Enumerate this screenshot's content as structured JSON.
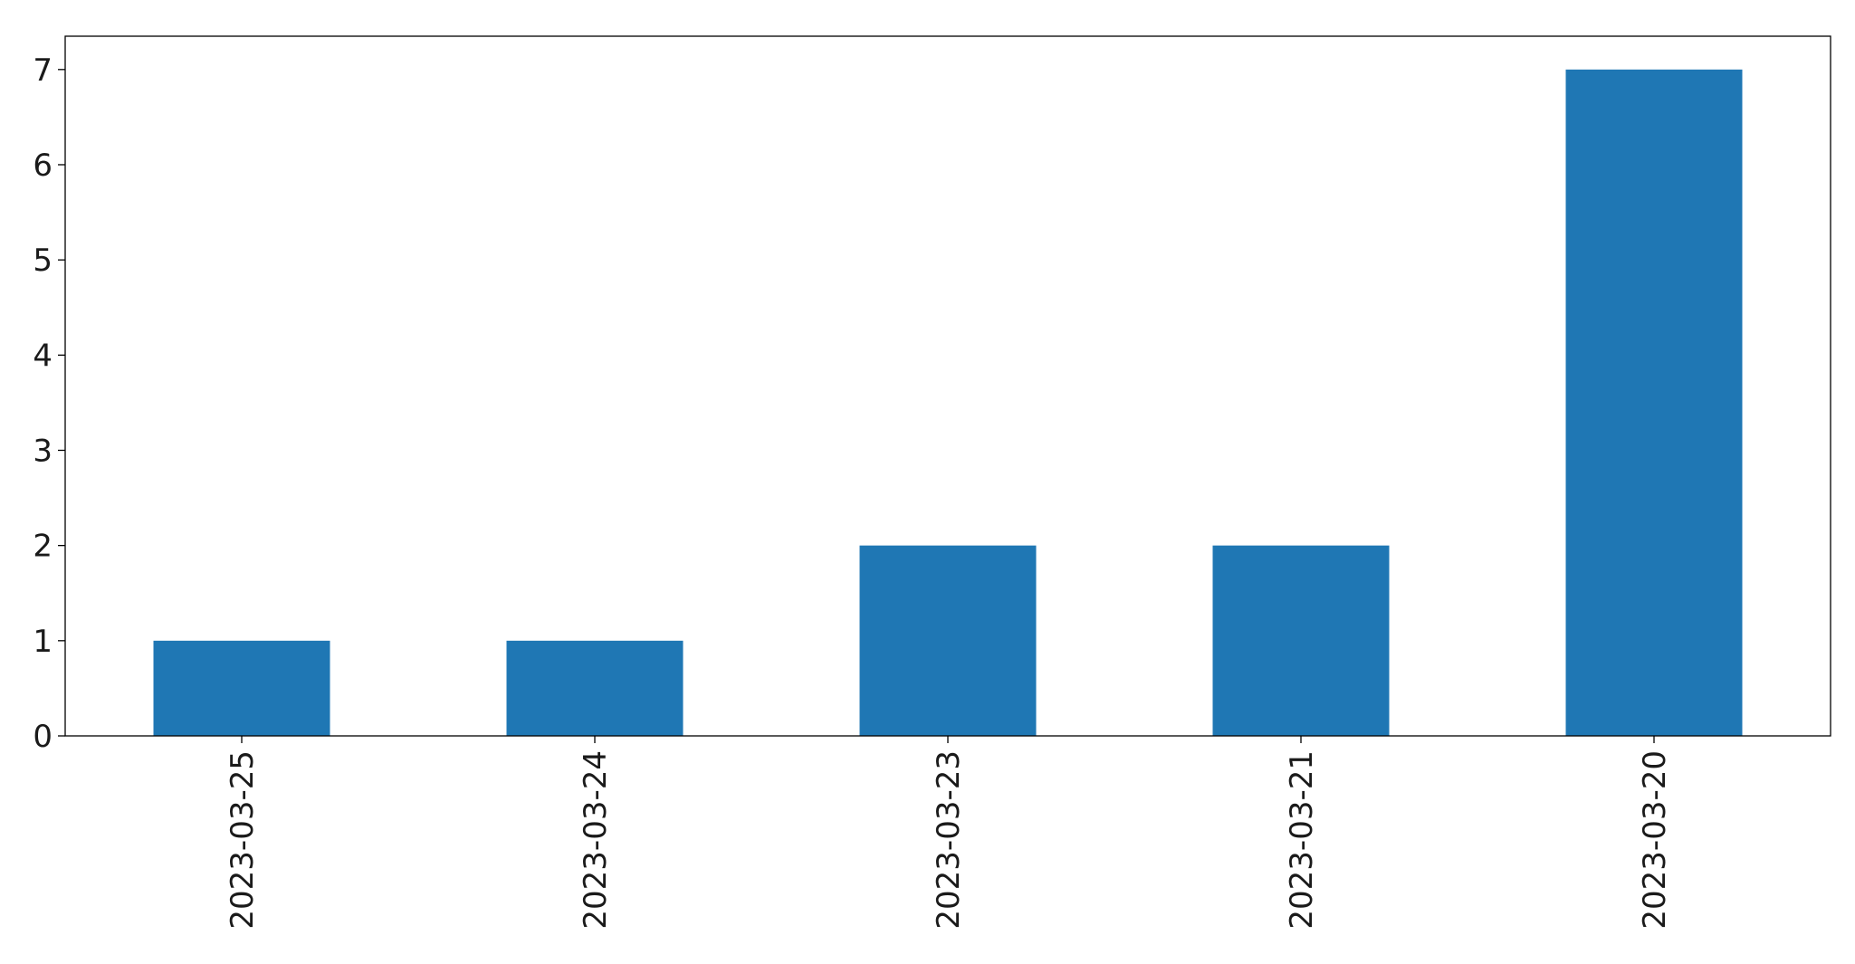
{
  "chart_data": {
    "type": "bar",
    "categories": [
      "2023-03-25",
      "2023-03-24",
      "2023-03-23",
      "2023-03-21",
      "2023-03-20"
    ],
    "values": [
      1,
      1,
      2,
      2,
      7
    ],
    "title": "",
    "xlabel": "",
    "ylabel": "",
    "ylim": [
      0,
      7.35
    ],
    "yticks": [
      0,
      1,
      2,
      3,
      4,
      5,
      6,
      7
    ],
    "grid": false,
    "legend": "none",
    "bar_color": "#1f77b4"
  }
}
